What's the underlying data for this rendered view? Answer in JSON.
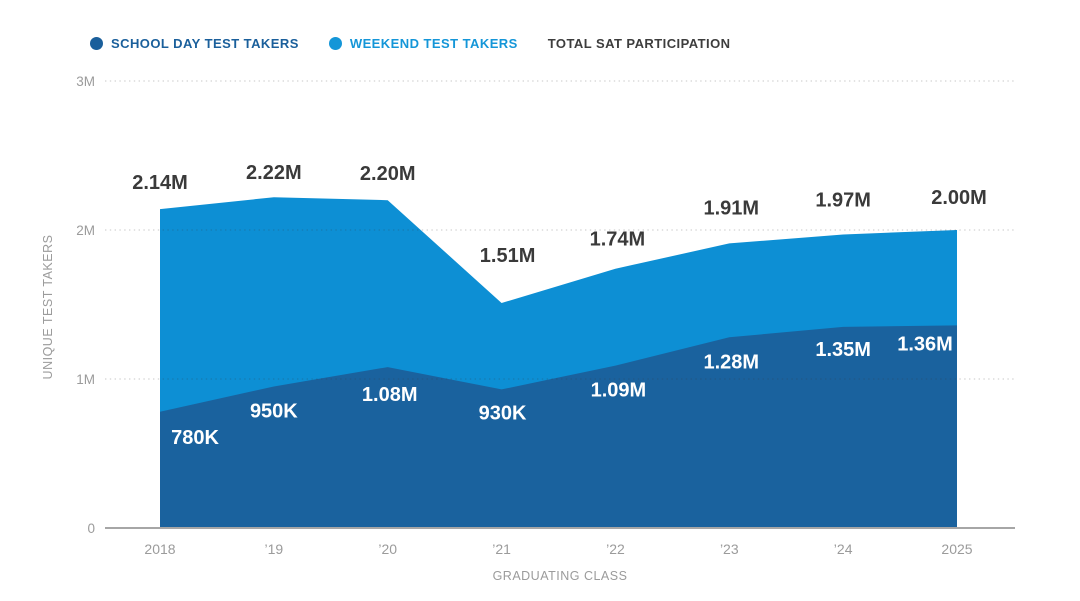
{
  "legend": {
    "items": [
      {
        "label": "SCHOOL DAY TEST TAKERS",
        "color": "#1a5f9b",
        "dot": true
      },
      {
        "label": "WEEKEND TEST TAKERS",
        "color": "#1496d8",
        "dot": true
      },
      {
        "label": "TOTAL SAT PARTICIPATION",
        "color": "#3d3d3d",
        "dot": false
      }
    ]
  },
  "chart_data": {
    "type": "area",
    "stacked": true,
    "title": "",
    "xlabel": "GRADUATING CLASS",
    "ylabel": "UNIQUE TEST TAKERS",
    "categories": [
      "2018",
      "’19",
      "’20",
      "’21",
      "’22",
      "’23",
      "’24",
      "2025"
    ],
    "yticks": [
      "0",
      "1M",
      "2M",
      "3M"
    ],
    "ylim": [
      0,
      3000000
    ],
    "grid": "dotted-horizontal",
    "series": [
      {
        "name": "School Day Test Takers",
        "color": "#1a629e",
        "values_millions": [
          0.78,
          0.95,
          1.08,
          0.93,
          1.09,
          1.28,
          1.35,
          1.36
        ],
        "labels": [
          "780K",
          "950K",
          "1.08M",
          "930K",
          "1.09M",
          "1.28M",
          "1.35M",
          "1.36M"
        ],
        "label_color": "#ffffff"
      },
      {
        "name": "Weekend Test Takers",
        "color": "#0d8fd4",
        "values_millions": [
          1.36,
          1.27,
          1.12,
          0.58,
          0.65,
          0.63,
          0.62,
          0.64
        ]
      }
    ],
    "totals_millions": [
      2.14,
      2.22,
      2.2,
      1.51,
      1.74,
      1.91,
      1.97,
      2.0
    ],
    "total_labels": [
      "2.14M",
      "2.22M",
      "2.20M",
      "1.51M",
      "1.74M",
      "1.91M",
      "1.97M",
      "2.00M"
    ],
    "total_label_color": "#3a3a3a",
    "total_series_name": "Total SAT Participation"
  }
}
